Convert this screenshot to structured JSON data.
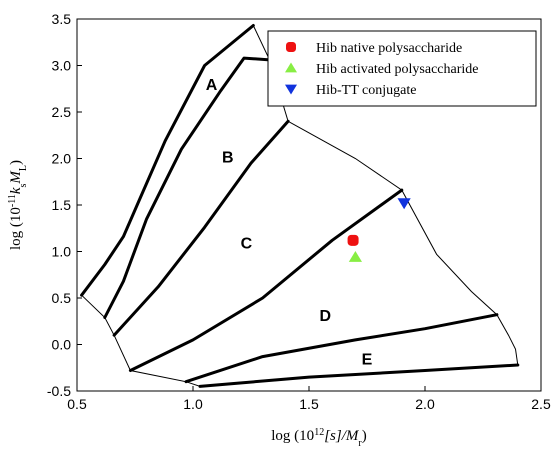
{
  "chart_data": {
    "type": "scatter",
    "xlabel_parts": [
      "log (10",
      "12",
      "[s]/M",
      "r",
      ")"
    ],
    "ylabel_parts": [
      "log (10",
      "-11",
      "k",
      "s",
      "M",
      "L",
      ")"
    ],
    "xlim": [
      0.5,
      2.5
    ],
    "ylim": [
      -0.5,
      3.5
    ],
    "x_ticks": [
      "0.5",
      "1.0",
      "1.5",
      "2.0",
      "2.5"
    ],
    "y_ticks": [
      "-0.5",
      "0.0",
      "0.5",
      "1.0",
      "1.5",
      "2.0",
      "2.5",
      "3.0",
      "3.5"
    ],
    "x_tick_values": [
      0.5,
      1.0,
      1.5,
      2.0,
      2.5
    ],
    "y_tick_values": [
      -0.5,
      0.0,
      0.5,
      1.0,
      1.5,
      2.0,
      2.5,
      3.0,
      3.5
    ],
    "grid": false,
    "legend_position": "top-right",
    "series": [
      {
        "name": "Hib native polysaccharide",
        "marker": "circle",
        "color": "#ee1111",
        "points": [
          [
            1.69,
            1.12
          ]
        ]
      },
      {
        "name": "Hib activated polysaccharide",
        "marker": "triangle-up",
        "color": "#88ee44",
        "points": [
          [
            1.7,
            0.94
          ]
        ]
      },
      {
        "name": "Hib-TT conjugate",
        "marker": "triangle-down",
        "color": "#1133dd",
        "points": [
          [
            1.91,
            1.52
          ]
        ]
      }
    ],
    "region_labels": [
      {
        "text": "A",
        "x": 1.08,
        "y": 2.78
      },
      {
        "text": "B",
        "x": 1.15,
        "y": 2.0
      },
      {
        "text": "C",
        "x": 1.23,
        "y": 1.08
      },
      {
        "text": "D",
        "x": 1.57,
        "y": 0.3
      },
      {
        "text": "E",
        "x": 1.75,
        "y": -0.17
      }
    ],
    "boundary": [
      [
        0.52,
        0.53
      ],
      [
        0.62,
        0.29
      ],
      [
        0.66,
        0.1
      ],
      [
        0.73,
        -0.28
      ],
      [
        0.97,
        -0.4
      ],
      [
        1.03,
        -0.45
      ],
      [
        1.3,
        -0.39
      ],
      [
        1.8,
        -0.31
      ],
      [
        2.4,
        -0.22
      ],
      [
        2.39,
        -0.05
      ],
      [
        2.36,
        0.1
      ],
      [
        2.31,
        0.32
      ],
      [
        2.2,
        0.57
      ],
      [
        2.05,
        0.97
      ],
      [
        1.9,
        1.66
      ],
      [
        1.7,
        2.0
      ],
      [
        1.41,
        2.4
      ],
      [
        1.33,
        3.06
      ],
      [
        1.26,
        3.43
      ],
      [
        1.05,
        3.0
      ],
      [
        0.88,
        2.19
      ],
      [
        0.77,
        1.56
      ],
      [
        0.7,
        1.16
      ],
      [
        0.62,
        0.86
      ],
      [
        0.52,
        0.53
      ]
    ],
    "lines": [
      [
        [
          0.52,
          0.53
        ],
        [
          0.62,
          0.86
        ],
        [
          0.7,
          1.16
        ],
        [
          0.77,
          1.56
        ],
        [
          0.88,
          2.19
        ],
        [
          1.05,
          3.0
        ],
        [
          1.26,
          3.43
        ]
      ],
      [
        [
          0.62,
          0.29
        ],
        [
          0.7,
          0.68
        ],
        [
          0.8,
          1.35
        ],
        [
          0.95,
          2.1
        ],
        [
          1.12,
          2.73
        ],
        [
          1.22,
          3.08
        ],
        [
          1.33,
          3.06
        ]
      ],
      [
        [
          0.66,
          0.1
        ],
        [
          0.85,
          0.62
        ],
        [
          1.05,
          1.26
        ],
        [
          1.25,
          1.95
        ],
        [
          1.41,
          2.4
        ]
      ],
      [
        [
          0.73,
          -0.28
        ],
        [
          1.0,
          0.05
        ],
        [
          1.3,
          0.5
        ],
        [
          1.6,
          1.12
        ],
        [
          1.9,
          1.66
        ]
      ],
      [
        [
          0.97,
          -0.4
        ],
        [
          1.3,
          -0.13
        ],
        [
          1.7,
          0.05
        ],
        [
          2.0,
          0.17
        ],
        [
          2.31,
          0.32
        ]
      ],
      [
        [
          1.03,
          -0.45
        ],
        [
          1.5,
          -0.35
        ],
        [
          2.0,
          -0.28
        ],
        [
          2.4,
          -0.22
        ]
      ]
    ]
  }
}
